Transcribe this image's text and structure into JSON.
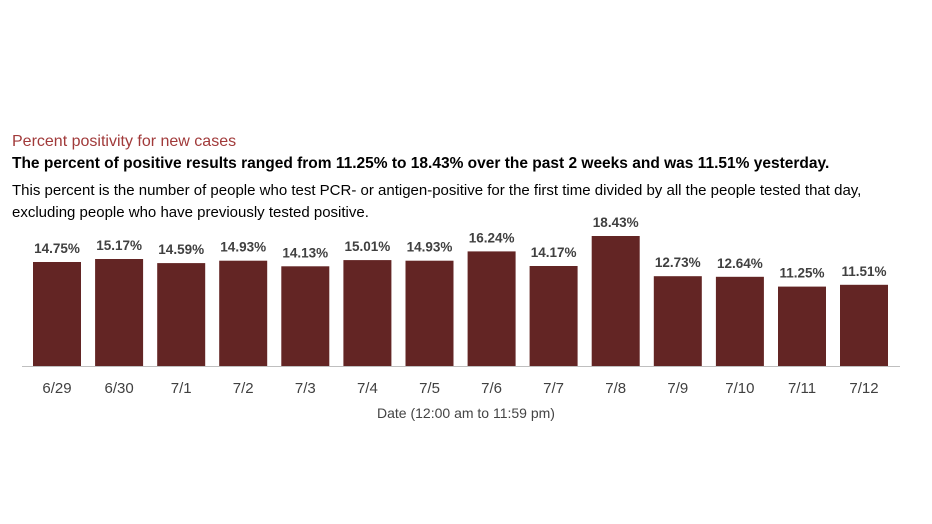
{
  "heading": "Percent positivity for new cases",
  "subtitle": "The percent of positive results ranged from 11.25% to 18.43% over the past 2 weeks and was 11.51% yesterday.",
  "description": {
    "line1": "This percent is the number of people who test PCR- or antigen-positive for the first time divided by all the people tested that day,",
    "line2": "excluding people who have previously tested positive."
  },
  "colors": {
    "bar": "#632524",
    "heading": "#a13a3a"
  },
  "chart_data": {
    "type": "bar",
    "categories": [
      "6/29",
      "6/30",
      "7/1",
      "7/2",
      "7/3",
      "7/4",
      "7/5",
      "7/6",
      "7/7",
      "7/8",
      "7/9",
      "7/10",
      "7/11",
      "7/12"
    ],
    "values": [
      14.75,
      15.17,
      14.59,
      14.93,
      14.13,
      15.01,
      14.93,
      16.24,
      14.17,
      18.43,
      12.73,
      12.64,
      11.25,
      11.51
    ],
    "data_labels": [
      "14.75%",
      "15.17%",
      "14.59%",
      "14.93%",
      "14.13%",
      "15.01%",
      "14.93%",
      "16.24%",
      "14.17%",
      "18.43%",
      "12.73%",
      "12.64%",
      "11.25%",
      "11.51%"
    ],
    "xlabel": "Date (12:00 am to 11:59 pm)",
    "ylabel": "",
    "ylim": [
      0,
      18.43
    ],
    "grid": false,
    "legend": "none"
  }
}
